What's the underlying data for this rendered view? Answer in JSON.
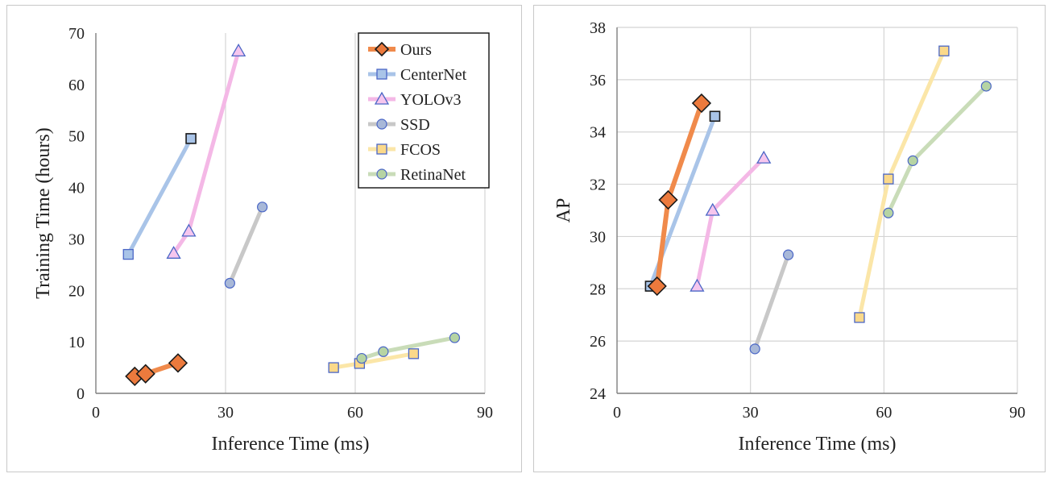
{
  "chart_data": [
    {
      "type": "line",
      "title": "",
      "xlabel": "Inference Time (ms)",
      "ylabel": "Training Time (hours)",
      "xlim": [
        0,
        90
      ],
      "ylim": [
        0,
        70
      ],
      "xticks": [
        "0",
        "30",
        "60",
        "90"
      ],
      "yticks": [
        "0",
        "10",
        "20",
        "30",
        "40",
        "50",
        "60",
        "70"
      ],
      "grid": "vertical",
      "legend": "top-right",
      "series": [
        {
          "name": "Ours",
          "marker": "diamond",
          "color": "#f08a4b",
          "points": [
            [
              9,
              3.3
            ],
            [
              11.5,
              3.8
            ],
            [
              19,
              5.9
            ]
          ]
        },
        {
          "name": "CenterNet",
          "marker": "square",
          "color": "#a9c4e8",
          "points": [
            [
              7.5,
              27
            ],
            [
              22,
              49.5
            ]
          ]
        },
        {
          "name": "YOLOv3",
          "marker": "triangle",
          "color": "#f4b8e6",
          "points": [
            [
              18,
              27.2
            ],
            [
              21.5,
              31.5
            ],
            [
              33,
              66.5
            ]
          ]
        },
        {
          "name": "SSD",
          "marker": "circle",
          "color": "#c8c8c8",
          "points": [
            [
              31,
              21.4
            ],
            [
              38.5,
              36.2
            ]
          ]
        },
        {
          "name": "FCOS",
          "marker": "square",
          "color": "#fbe6a8",
          "points": [
            [
              55,
              5
            ],
            [
              61,
              5.8
            ],
            [
              73.5,
              7.7
            ]
          ]
        },
        {
          "name": "RetinaNet",
          "marker": "circle",
          "color": "#c9dcb8",
          "points": [
            [
              61.5,
              6.8
            ],
            [
              66.5,
              8.1
            ],
            [
              83,
              10.8
            ]
          ]
        }
      ]
    },
    {
      "type": "line",
      "title": "",
      "xlabel": "Inference Time (ms)",
      "ylabel": "AP",
      "xlim": [
        0,
        90
      ],
      "ylim": [
        24,
        38
      ],
      "xticks": [
        "0",
        "30",
        "60",
        "90"
      ],
      "yticks": [
        "24",
        "26",
        "28",
        "30",
        "32",
        "34",
        "36",
        "38"
      ],
      "grid": "both",
      "legend": "none",
      "series": [
        {
          "name": "Ours",
          "marker": "diamond",
          "color": "#f08a4b",
          "points": [
            [
              9,
              28.1
            ],
            [
              11.5,
              31.4
            ],
            [
              19,
              35.1
            ]
          ]
        },
        {
          "name": "CenterNet",
          "marker": "square",
          "color": "#a9c4e8",
          "points": [
            [
              7.5,
              28.1
            ],
            [
              22,
              34.6
            ]
          ]
        },
        {
          "name": "YOLOv3",
          "marker": "triangle",
          "color": "#f4b8e6",
          "points": [
            [
              18,
              28.1
            ],
            [
              21.5,
              31
            ],
            [
              33,
              33
            ]
          ]
        },
        {
          "name": "SSD",
          "marker": "circle",
          "color": "#c8c8c8",
          "points": [
            [
              31,
              25.7
            ],
            [
              38.5,
              29.3
            ]
          ]
        },
        {
          "name": "FCOS",
          "marker": "square",
          "color": "#fbe6a8",
          "points": [
            [
              54.5,
              26.9
            ],
            [
              61,
              32.2
            ],
            [
              73.5,
              37.1
            ]
          ]
        },
        {
          "name": "RetinaNet",
          "marker": "circle",
          "color": "#c9dcb8",
          "points": [
            [
              61,
              30.9
            ],
            [
              66.5,
              32.9
            ],
            [
              83,
              35.75
            ]
          ]
        }
      ]
    }
  ],
  "colors": {
    "marker_edge": "#1a1a1a",
    "marker_edge_blue": "#4a66c6",
    "ours_fill": "#ec7a3d",
    "centernet_fill": "#a9c4e8",
    "yolov3_fill": "#f6c6ee",
    "ssd_fill": "#a8b8d8",
    "fcos_fill": "#fbd98a",
    "retinanet_fill": "#b6d4a3",
    "grid": "#d4d4d4",
    "axis": "#7f7f7f"
  }
}
